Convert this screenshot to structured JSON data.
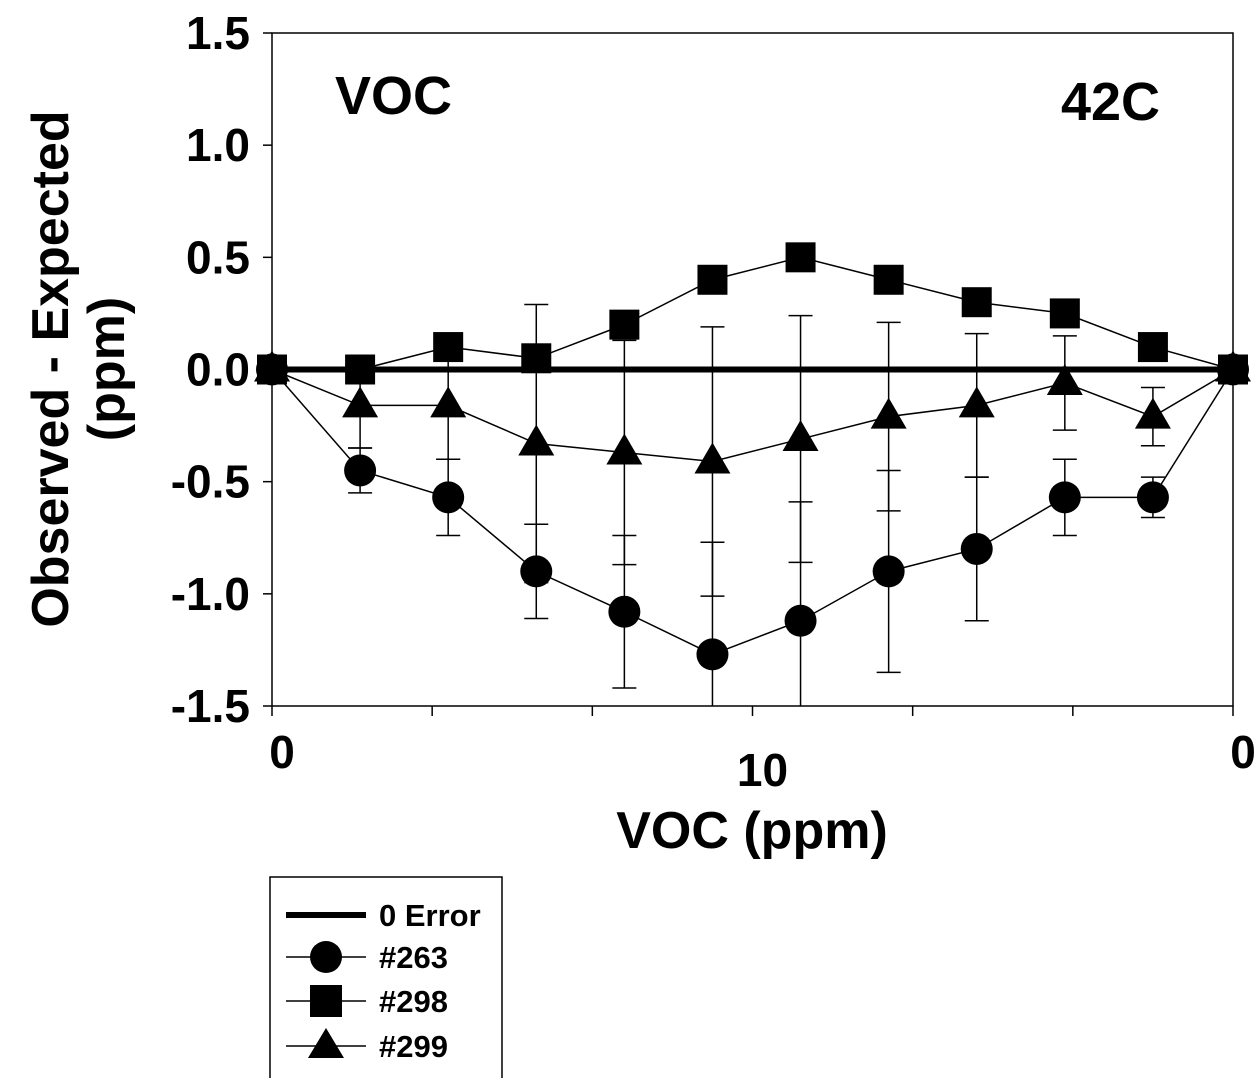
{
  "chart_data": {
    "type": "line",
    "title": "",
    "xlabel": "VOC (ppm)",
    "ylabel": [
      "Observed - Expected",
      "(ppm)"
    ],
    "annotations": [
      "VOC",
      "42C"
    ],
    "xlim": [
      0,
      12
    ],
    "ylim": [
      -1.5,
      1.5
    ],
    "x_tick_labels": [
      {
        "x": 0,
        "label": "0"
      },
      {
        "x": 6,
        "label": "10"
      },
      {
        "x": 12,
        "label": "0"
      }
    ],
    "y_ticks": [
      {
        "y": 1.5,
        "label": "1.5"
      },
      {
        "y": 1.0,
        "label": "1.0"
      },
      {
        "y": 0.5,
        "label": "0.5"
      },
      {
        "y": 0.0,
        "label": "0.0"
      },
      {
        "y": -0.5,
        "label": "-0.5"
      },
      {
        "y": -1.0,
        "label": "-1.0"
      },
      {
        "y": -1.5,
        "label": "-1.5"
      }
    ],
    "x": [
      0,
      1.1,
      2.2,
      3.3,
      4.4,
      5.5,
      6.6,
      7.7,
      8.8,
      9.9,
      11,
      12
    ],
    "reference_line": {
      "name": "0 Error",
      "y": 0
    },
    "series": [
      {
        "name": "#263",
        "marker": "circle",
        "values": [
          0,
          -0.45,
          -0.57,
          -0.9,
          -1.08,
          -1.27,
          -1.12,
          -0.9,
          -0.8,
          -0.57,
          -0.57,
          0
        ],
        "error": [
          0,
          0.1,
          0.17,
          0.21,
          0.34,
          0.5,
          0.53,
          0.45,
          0.32,
          0.17,
          0.09,
          0
        ]
      },
      {
        "name": "#298",
        "marker": "square",
        "values": [
          0,
          0,
          0.1,
          0.05,
          0.2,
          0.4,
          0.5,
          0.4,
          0.3,
          0.25,
          0.1,
          0
        ],
        "error": [
          0,
          0,
          0,
          0,
          0,
          0,
          0,
          0,
          0,
          0,
          0,
          0
        ]
      },
      {
        "name": "#299",
        "marker": "triangle",
        "values": [
          0,
          -0.16,
          -0.16,
          -0.33,
          -0.37,
          -0.41,
          -0.31,
          -0.21,
          -0.16,
          -0.06,
          -0.21,
          0
        ],
        "error": [
          0,
          0.19,
          0.24,
          0.62,
          0.5,
          0.6,
          0.55,
          0.42,
          0.32,
          0.21,
          0.13,
          0
        ]
      }
    ],
    "grid": false,
    "legend": {
      "placement": "bottom-left-outside",
      "entries": [
        "0 Error",
        "#263",
        "#298",
        "#299"
      ]
    }
  }
}
